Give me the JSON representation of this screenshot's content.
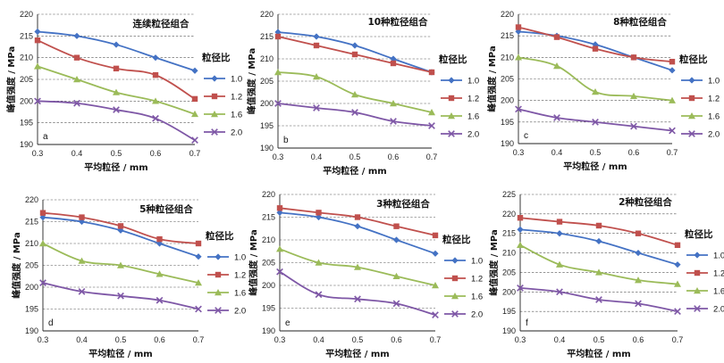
{
  "figure": {
    "legend_title": "粒径比",
    "xlabel": "平均粒径 / mm",
    "ylabel": "峰值强度 / MPa"
  },
  "series_styles": [
    {
      "name": "1.0",
      "color": "#4472c4",
      "marker": "diamond"
    },
    {
      "name": "1.2",
      "color": "#c0504d",
      "marker": "square"
    },
    {
      "name": "1.6",
      "color": "#9bbb59",
      "marker": "triangle"
    },
    {
      "name": "2.0",
      "color": "#7e57a6",
      "marker": "x"
    }
  ],
  "chart_data": [
    {
      "type": "line",
      "title": "连续粒径组合",
      "letter": "a",
      "x": [
        0.3,
        0.4,
        0.5,
        0.6,
        0.7
      ],
      "xticks": [
        "0.3",
        "0.4",
        "0.5",
        "0.6",
        "0.7"
      ],
      "ylim": [
        190,
        220
      ],
      "yticks": [
        190,
        195,
        200,
        205,
        210,
        215,
        220
      ],
      "series": [
        {
          "name": "1.0",
          "values": [
            216,
            215,
            213,
            210,
            207
          ]
        },
        {
          "name": "1.2",
          "values": [
            214,
            210,
            207.5,
            206,
            200.5
          ]
        },
        {
          "name": "1.6",
          "values": [
            208,
            205,
            202,
            200,
            197
          ]
        },
        {
          "name": "2.0",
          "values": [
            200,
            199.5,
            198,
            196,
            191
          ]
        }
      ]
    },
    {
      "type": "line",
      "title": "10种粒径组合",
      "letter": "b",
      "x": [
        0.3,
        0.4,
        0.5,
        0.6,
        0.7
      ],
      "xticks": [
        "0.3",
        "0.4",
        "0.5",
        "0.6",
        "0.7"
      ],
      "ylim": [
        190,
        220
      ],
      "yticks": [
        190,
        195,
        200,
        205,
        210,
        215,
        220
      ],
      "series": [
        {
          "name": "1.0",
          "values": [
            216,
            215,
            213,
            210,
            207
          ]
        },
        {
          "name": "1.2",
          "values": [
            215,
            213,
            211,
            209,
            207
          ]
        },
        {
          "name": "1.6",
          "values": [
            207,
            206,
            202,
            200,
            198
          ]
        },
        {
          "name": "2.0",
          "values": [
            200,
            199,
            198,
            196,
            195
          ]
        }
      ]
    },
    {
      "type": "line",
      "title": "8种粒径组合",
      "letter": "c",
      "x": [
        0.3,
        0.4,
        0.5,
        0.6,
        0.7
      ],
      "xticks": [
        "0.3",
        "0.4",
        "0.5",
        "0.6",
        "0.7"
      ],
      "ylim": [
        190,
        220
      ],
      "yticks": [
        190,
        195,
        200,
        205,
        210,
        215,
        220
      ],
      "series": [
        {
          "name": "1.0",
          "values": [
            216,
            215,
            213,
            210,
            207
          ]
        },
        {
          "name": "1.2",
          "values": [
            217,
            214.7,
            212,
            210,
            209
          ]
        },
        {
          "name": "1.6",
          "values": [
            210,
            208,
            202,
            201,
            200
          ]
        },
        {
          "name": "2.0",
          "values": [
            198,
            196,
            195,
            194,
            193
          ]
        }
      ]
    },
    {
      "type": "line",
      "title": "5种粒径组合",
      "letter": "d",
      "x": [
        0.3,
        0.4,
        0.5,
        0.6,
        0.7
      ],
      "xticks": [
        "0.3",
        "0.4",
        "0.5",
        "0.6",
        "0.7"
      ],
      "ylim": [
        190,
        220
      ],
      "yticks": [
        190,
        195,
        200,
        205,
        210,
        215,
        220
      ],
      "series": [
        {
          "name": "1.0",
          "values": [
            216,
            215,
            213,
            210,
            207
          ]
        },
        {
          "name": "1.2",
          "values": [
            217,
            216,
            214,
            211,
            210
          ]
        },
        {
          "name": "1.6",
          "values": [
            210,
            206,
            205,
            203,
            201
          ]
        },
        {
          "name": "2.0",
          "values": [
            201,
            199,
            198,
            197,
            195
          ]
        }
      ]
    },
    {
      "type": "line",
      "title": "3种粒径组合",
      "letter": "e",
      "x": [
        0.3,
        0.4,
        0.5,
        0.6,
        0.7
      ],
      "xticks": [
        "0.3",
        "0.4",
        "0.5",
        "0.6",
        "0.7"
      ],
      "ylim": [
        190,
        220
      ],
      "yticks": [
        190,
        195,
        200,
        205,
        210,
        215,
        220
      ],
      "series": [
        {
          "name": "1.0",
          "values": [
            216,
            215,
            213,
            210,
            207
          ]
        },
        {
          "name": "1.2",
          "values": [
            217,
            216,
            215,
            213,
            211
          ]
        },
        {
          "name": "1.6",
          "values": [
            208,
            205,
            204,
            202,
            200
          ]
        },
        {
          "name": "2.0",
          "values": [
            203,
            198,
            197,
            196,
            193.5
          ]
        }
      ]
    },
    {
      "type": "line",
      "title": "2种粒径组合",
      "letter": "f",
      "x": [
        0.3,
        0.4,
        0.5,
        0.6,
        0.7
      ],
      "xticks": [
        "0.3",
        "0.4",
        "0.5",
        "0.6",
        "0.7"
      ],
      "ylim": [
        190,
        225
      ],
      "yticks": [
        190,
        195,
        200,
        205,
        210,
        215,
        220,
        225
      ],
      "series": [
        {
          "name": "1.0",
          "values": [
            216,
            215,
            213,
            210,
            207
          ]
        },
        {
          "name": "1.2",
          "values": [
            219,
            218,
            217,
            215,
            212
          ]
        },
        {
          "name": "1.6",
          "values": [
            212,
            207,
            205,
            203,
            202
          ]
        },
        {
          "name": "2.0",
          "values": [
            201,
            200,
            198,
            197,
            195
          ]
        }
      ]
    }
  ]
}
